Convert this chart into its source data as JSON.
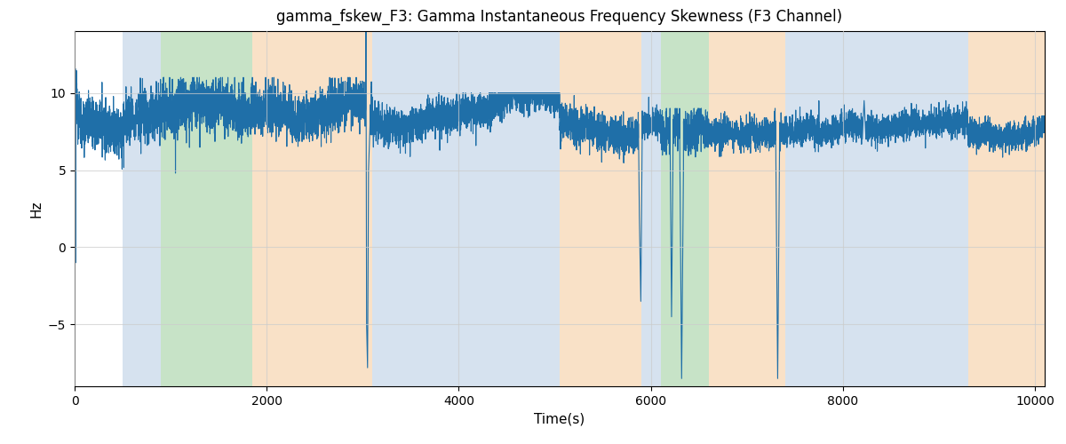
{
  "title": "gamma_fskew_F3: Gamma Instantaneous Frequency Skewness (F3 Channel)",
  "xlabel": "Time(s)",
  "ylabel": "Hz",
  "xlim": [
    0,
    10100
  ],
  "ylim": [
    -9,
    14
  ],
  "line_color": "#1f6fa8",
  "line_width": 0.8,
  "bg_bands": [
    {
      "xstart": 500,
      "xend": 900,
      "color": "#aec6e0",
      "alpha": 0.5
    },
    {
      "xstart": 900,
      "xend": 1850,
      "color": "#90c990",
      "alpha": 0.5
    },
    {
      "xstart": 1850,
      "xend": 3100,
      "color": "#f5c490",
      "alpha": 0.5
    },
    {
      "xstart": 3100,
      "xend": 3600,
      "color": "#aec6e0",
      "alpha": 0.5
    },
    {
      "xstart": 3600,
      "xend": 5050,
      "color": "#aec6e0",
      "alpha": 0.5
    },
    {
      "xstart": 5050,
      "xend": 5900,
      "color": "#f5c490",
      "alpha": 0.5
    },
    {
      "xstart": 5900,
      "xend": 6100,
      "color": "#aec6e0",
      "alpha": 0.5
    },
    {
      "xstart": 6100,
      "xend": 6600,
      "color": "#90c990",
      "alpha": 0.5
    },
    {
      "xstart": 6600,
      "xend": 7400,
      "color": "#f5c490",
      "alpha": 0.5
    },
    {
      "xstart": 7400,
      "xend": 7750,
      "color": "#aec6e0",
      "alpha": 0.5
    },
    {
      "xstart": 7750,
      "xend": 9300,
      "color": "#aec6e0",
      "alpha": 0.5
    },
    {
      "xstart": 9300,
      "xend": 10100,
      "color": "#f5c490",
      "alpha": 0.5
    }
  ],
  "title_fontsize": 12,
  "label_fontsize": 11,
  "tick_fontsize": 10
}
